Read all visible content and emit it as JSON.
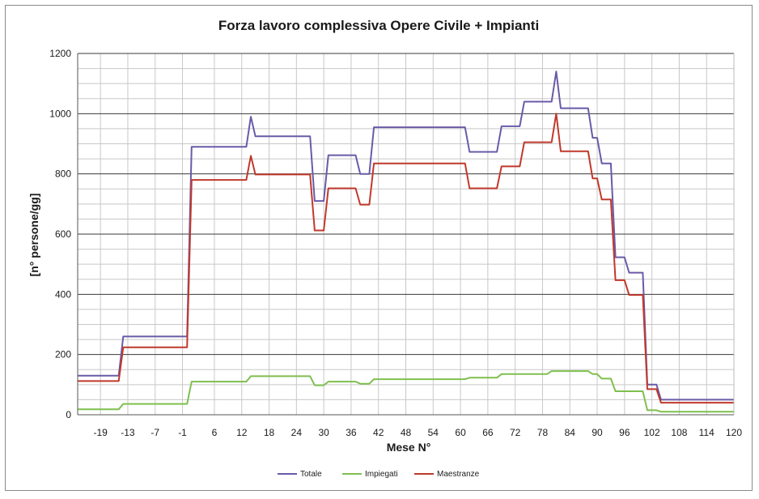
{
  "chart_data": {
    "type": "line",
    "title": "Forza lavoro complessiva Opere Civile + Impianti",
    "xlabel": "Mese N°",
    "ylabel": "[n° persone/gg]",
    "xlim": [
      -24,
      120
    ],
    "ylim": [
      0,
      1200
    ],
    "x_ticks": [
      -19,
      -13,
      -7,
      -1,
      6,
      12,
      18,
      24,
      30,
      36,
      42,
      48,
      54,
      60,
      66,
      72,
      78,
      84,
      90,
      96,
      102,
      108,
      114,
      120
    ],
    "x_tick_labels": [
      "-19",
      "-13",
      "-7",
      "-1",
      "6",
      "12",
      "18",
      "24",
      "30",
      "36",
      "42",
      "48",
      "54",
      "60",
      "66",
      "72",
      "78",
      "84",
      "90",
      "96",
      "102",
      "108",
      "114",
      "120"
    ],
    "y_ticks": [
      0,
      200,
      400,
      600,
      800,
      1000,
      1200
    ],
    "y_tick_labels": [
      "0",
      "200",
      "400",
      "600",
      "800",
      "1000",
      "1200"
    ],
    "grid": true,
    "legend_position": "bottom",
    "series": [
      {
        "name": "Totale",
        "color": "#6a5aa8",
        "points": [
          [
            -24,
            130
          ],
          [
            -15,
            130
          ],
          [
            -14,
            260
          ],
          [
            0,
            260
          ],
          [
            1,
            890
          ],
          [
            13,
            890
          ],
          [
            14,
            990
          ],
          [
            15,
            925
          ],
          [
            27,
            925
          ],
          [
            28,
            710
          ],
          [
            30,
            710
          ],
          [
            31,
            862
          ],
          [
            37,
            862
          ],
          [
            38,
            800
          ],
          [
            40,
            800
          ],
          [
            41,
            955
          ],
          [
            61,
            955
          ],
          [
            62,
            873
          ],
          [
            68,
            873
          ],
          [
            69,
            958
          ],
          [
            73,
            958
          ],
          [
            74,
            1040
          ],
          [
            80,
            1040
          ],
          [
            81,
            1140
          ],
          [
            82,
            1018
          ],
          [
            88,
            1018
          ],
          [
            89,
            920
          ],
          [
            90,
            920
          ],
          [
            91,
            835
          ],
          [
            93,
            835
          ],
          [
            94,
            523
          ],
          [
            96,
            523
          ],
          [
            97,
            472
          ],
          [
            100,
            472
          ],
          [
            101,
            100
          ],
          [
            103,
            100
          ],
          [
            104,
            50
          ],
          [
            120,
            50
          ]
        ]
      },
      {
        "name": "Impiegati",
        "color": "#7fbf4f",
        "points": [
          [
            -24,
            18
          ],
          [
            -15,
            18
          ],
          [
            -14,
            36
          ],
          [
            0,
            36
          ],
          [
            1,
            110
          ],
          [
            13,
            110
          ],
          [
            14,
            128
          ],
          [
            27,
            128
          ],
          [
            28,
            98
          ],
          [
            30,
            98
          ],
          [
            31,
            110
          ],
          [
            37,
            110
          ],
          [
            38,
            103
          ],
          [
            40,
            103
          ],
          [
            41,
            118
          ],
          [
            61,
            118
          ],
          [
            62,
            123
          ],
          [
            68,
            123
          ],
          [
            69,
            135
          ],
          [
            79,
            135
          ],
          [
            80,
            145
          ],
          [
            88,
            145
          ],
          [
            89,
            135
          ],
          [
            90,
            135
          ],
          [
            91,
            120
          ],
          [
            93,
            120
          ],
          [
            94,
            78
          ],
          [
            100,
            78
          ],
          [
            101,
            15
          ],
          [
            103,
            15
          ],
          [
            104,
            10
          ],
          [
            120,
            10
          ]
        ]
      },
      {
        "name": "Maestranze",
        "color": "#c0392b",
        "points": [
          [
            -24,
            112
          ],
          [
            -15,
            112
          ],
          [
            -14,
            224
          ],
          [
            0,
            224
          ],
          [
            1,
            780
          ],
          [
            13,
            780
          ],
          [
            14,
            860
          ],
          [
            15,
            798
          ],
          [
            27,
            798
          ],
          [
            28,
            612
          ],
          [
            30,
            612
          ],
          [
            31,
            752
          ],
          [
            37,
            752
          ],
          [
            38,
            698
          ],
          [
            40,
            698
          ],
          [
            41,
            835
          ],
          [
            61,
            835
          ],
          [
            62,
            752
          ],
          [
            68,
            752
          ],
          [
            69,
            825
          ],
          [
            73,
            825
          ],
          [
            74,
            905
          ],
          [
            80,
            905
          ],
          [
            81,
            1000
          ],
          [
            82,
            875
          ],
          [
            88,
            875
          ],
          [
            89,
            785
          ],
          [
            90,
            785
          ],
          [
            91,
            715
          ],
          [
            93,
            715
          ],
          [
            94,
            447
          ],
          [
            96,
            447
          ],
          [
            97,
            398
          ],
          [
            100,
            398
          ],
          [
            101,
            85
          ],
          [
            103,
            85
          ],
          [
            104,
            40
          ],
          [
            120,
            40
          ]
        ]
      }
    ]
  }
}
